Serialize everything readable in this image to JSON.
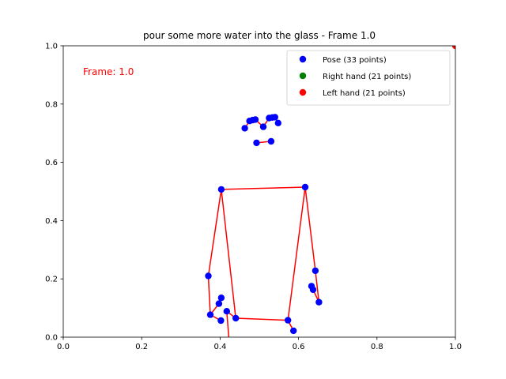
{
  "chart_data": {
    "type": "scatter",
    "title": "pour some more water into the glass - Frame 1.0",
    "xlabel": "",
    "ylabel": "",
    "xlim": [
      0,
      1
    ],
    "ylim": [
      0,
      1
    ],
    "grid": false,
    "xticks": [
      "0.0",
      "0.2",
      "0.4",
      "0.6",
      "0.8",
      "1.0"
    ],
    "yticks": [
      "0.0",
      "0.2",
      "0.4",
      "0.6",
      "0.8",
      "1.0"
    ],
    "annotation": {
      "text": "Frame: 1.0",
      "color": "#ff0000"
    },
    "legend": {
      "position": "top-right",
      "entries": [
        {
          "label": "Pose (33 points)",
          "color": "#0000ff"
        },
        {
          "label": "Right hand (21 points)",
          "color": "#008000"
        },
        {
          "label": "Left hand (21 points)",
          "color": "#ff0000"
        }
      ]
    },
    "connection_color": "#ff0000",
    "series": [
      {
        "name": "Pose (33 points)",
        "color": "#0000ff",
        "points": [
          [
            0.51,
            0.722
          ],
          [
            0.475,
            0.742
          ],
          [
            0.483,
            0.745
          ],
          [
            0.49,
            0.747
          ],
          [
            0.525,
            0.752
          ],
          [
            0.533,
            0.754
          ],
          [
            0.54,
            0.755
          ],
          [
            0.463,
            0.717
          ],
          [
            0.548,
            0.735
          ],
          [
            0.493,
            0.667
          ],
          [
            0.53,
            0.672
          ],
          [
            0.403,
            0.507
          ],
          [
            0.617,
            0.515
          ],
          [
            0.37,
            0.21
          ],
          [
            0.643,
            0.228
          ],
          [
            0.375,
            0.077
          ],
          [
            0.652,
            0.12
          ],
          [
            0.397,
            0.115
          ],
          [
            0.633,
            0.175
          ],
          [
            0.403,
            0.135
          ],
          [
            0.637,
            0.163
          ],
          [
            0.402,
            0.057
          ],
          [
            0.417,
            0.089
          ],
          [
            0.44,
            0.065
          ],
          [
            0.573,
            0.058
          ],
          [
            0.587,
            0.022
          ]
        ]
      },
      {
        "name": "Right hand (21 points)",
        "color": "#008000",
        "points": []
      },
      {
        "name": "Left hand (21 points)",
        "color": "#ff0000",
        "points": [
          [
            1.0,
            1.0
          ]
        ]
      }
    ],
    "connections": [
      [
        [
          0.475,
          0.742
        ],
        [
          0.483,
          0.745
        ],
        [
          0.49,
          0.747
        ],
        [
          0.51,
          0.722
        ],
        [
          0.525,
          0.752
        ],
        [
          0.533,
          0.754
        ],
        [
          0.54,
          0.755
        ],
        [
          0.548,
          0.735
        ]
      ],
      [
        [
          0.475,
          0.742
        ],
        [
          0.463,
          0.717
        ]
      ],
      [
        [
          0.493,
          0.667
        ],
        [
          0.53,
          0.672
        ]
      ],
      [
        [
          0.403,
          0.507
        ],
        [
          0.617,
          0.515
        ]
      ],
      [
        [
          0.403,
          0.507
        ],
        [
          0.37,
          0.21
        ],
        [
          0.375,
          0.077
        ],
        [
          0.397,
          0.115
        ],
        [
          0.403,
          0.135
        ]
      ],
      [
        [
          0.375,
          0.077
        ],
        [
          0.402,
          0.057
        ]
      ],
      [
        [
          0.617,
          0.515
        ],
        [
          0.643,
          0.228
        ],
        [
          0.652,
          0.12
        ],
        [
          0.633,
          0.175
        ],
        [
          0.637,
          0.163
        ]
      ],
      [
        [
          0.403,
          0.507
        ],
        [
          0.44,
          0.065
        ],
        [
          0.573,
          0.058
        ],
        [
          0.617,
          0.515
        ]
      ],
      [
        [
          0.417,
          0.089
        ],
        [
          0.44,
          0.065
        ]
      ],
      [
        [
          0.417,
          0.089
        ],
        [
          0.425,
          -0.05
        ]
      ],
      [
        [
          0.573,
          0.058
        ],
        [
          0.587,
          0.022
        ]
      ]
    ]
  }
}
